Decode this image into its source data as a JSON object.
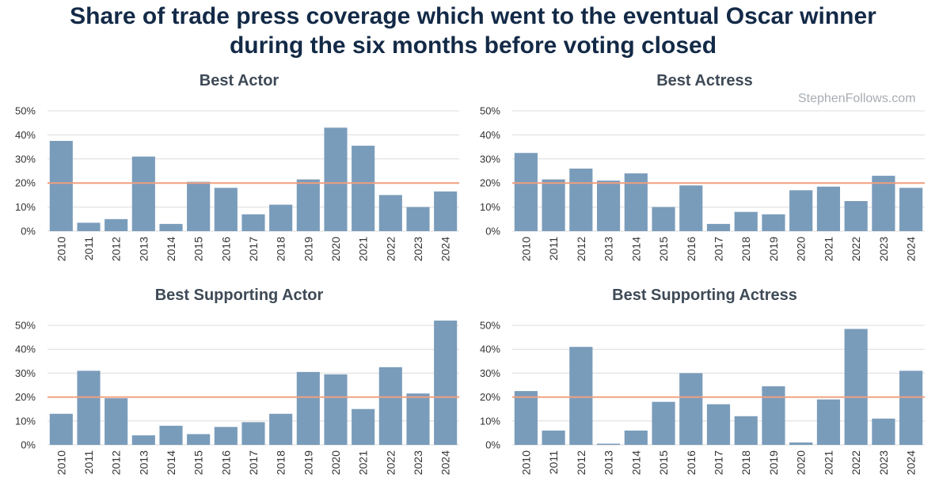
{
  "title_lines": [
    "Share of trade press coverage which went to the eventual Oscar winner",
    "during the six months before voting closed"
  ],
  "watermark": "StephenFollows.com",
  "colors": {
    "bar": "#7a9cbb",
    "reference_line": "#f0a07f",
    "grid": "#dcdcdc",
    "title": "#132a47",
    "panel_title": "#3e4a56"
  },
  "chart_data": [
    {
      "type": "bar",
      "title": "Best Actor",
      "categories": [
        "2010",
        "2011",
        "2012",
        "2013",
        "2014",
        "2015",
        "2016",
        "2017",
        "2018",
        "2019",
        "2020",
        "2021",
        "2022",
        "2023",
        "2024"
      ],
      "values": [
        37.5,
        3.5,
        5,
        31,
        3,
        20.5,
        18,
        7,
        11,
        21.5,
        43,
        35.5,
        15,
        10,
        16.5
      ],
      "y_ticks": [
        "0%",
        "10%",
        "20%",
        "30%",
        "40%",
        "50%"
      ],
      "ylim": [
        0,
        50
      ],
      "reference_line": 20,
      "xlabel": "",
      "ylabel": ""
    },
    {
      "type": "bar",
      "title": "Best Actress",
      "categories": [
        "2010",
        "2011",
        "2012",
        "2013",
        "2014",
        "2015",
        "2016",
        "2017",
        "2018",
        "2019",
        "2020",
        "2021",
        "2022",
        "2023",
        "2024"
      ],
      "values": [
        32.5,
        21.5,
        26,
        21,
        24,
        10,
        19,
        3,
        8,
        7,
        17,
        18.5,
        12.5,
        23,
        18
      ],
      "y_ticks": [
        "0%",
        "10%",
        "20%",
        "30%",
        "40%",
        "50%"
      ],
      "ylim": [
        0,
        50
      ],
      "reference_line": 20,
      "xlabel": "",
      "ylabel": ""
    },
    {
      "type": "bar",
      "title": "Best Supporting Actor",
      "categories": [
        "2010",
        "2011",
        "2012",
        "2013",
        "2014",
        "2015",
        "2016",
        "2017",
        "2018",
        "2019",
        "2020",
        "2021",
        "2022",
        "2023",
        "2024"
      ],
      "values": [
        13,
        31,
        19.5,
        4,
        8,
        4.5,
        7.5,
        9.5,
        13,
        30.5,
        29.5,
        15,
        32.5,
        21.5,
        52
      ],
      "y_ticks": [
        "0%",
        "10%",
        "20%",
        "30%",
        "40%",
        "50%"
      ],
      "ylim": [
        0,
        50
      ],
      "reference_line": 20,
      "xlabel": "",
      "ylabel": ""
    },
    {
      "type": "bar",
      "title": "Best Supporting Actress",
      "categories": [
        "2010",
        "2011",
        "2012",
        "2013",
        "2014",
        "2015",
        "2016",
        "2017",
        "2018",
        "2019",
        "2020",
        "2021",
        "2022",
        "2023",
        "2024"
      ],
      "values": [
        22.5,
        6,
        41,
        0.5,
        6,
        18,
        30,
        17,
        12,
        24.5,
        1,
        19,
        48.5,
        11,
        31
      ],
      "y_ticks": [
        "0%",
        "10%",
        "20%",
        "30%",
        "40%",
        "50%"
      ],
      "ylim": [
        0,
        50
      ],
      "reference_line": 20,
      "xlabel": "",
      "ylabel": ""
    }
  ]
}
